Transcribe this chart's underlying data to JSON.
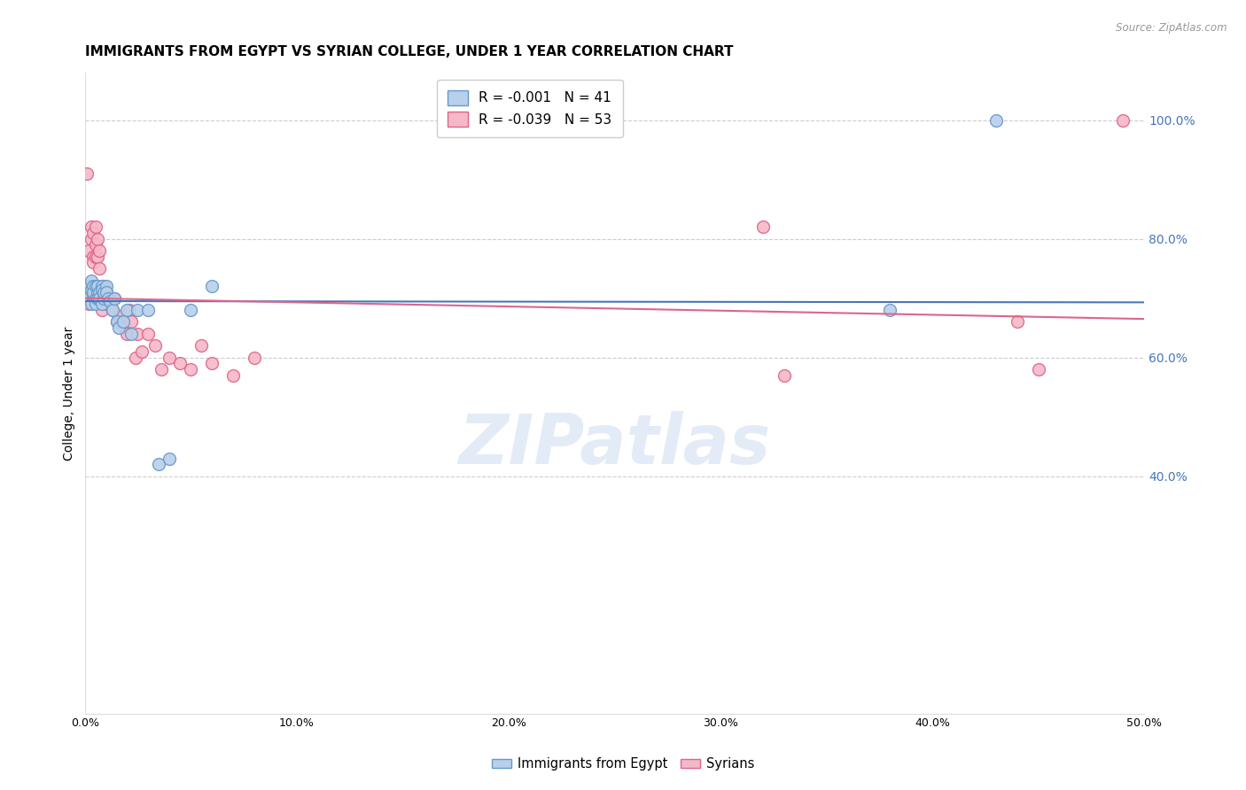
{
  "title": "IMMIGRANTS FROM EGYPT VS SYRIAN COLLEGE, UNDER 1 YEAR CORRELATION CHART",
  "source": "Source: ZipAtlas.com",
  "ylabel": "College, Under 1 year",
  "xlim": [
    0.0,
    0.5
  ],
  "ylim": [
    0.0,
    1.08
  ],
  "xtick_labels": [
    "0.0%",
    "10.0%",
    "20.0%",
    "30.0%",
    "40.0%",
    "50.0%"
  ],
  "xtick_vals": [
    0.0,
    0.1,
    0.2,
    0.3,
    0.4,
    0.5
  ],
  "ytick_labels": [
    "40.0%",
    "60.0%",
    "80.0%",
    "100.0%"
  ],
  "ytick_vals": [
    0.4,
    0.6,
    0.8,
    1.0
  ],
  "legend_entries": [
    {
      "label": "R = -0.001   N = 41",
      "color": "#b8d0ea"
    },
    {
      "label": "R = -0.039   N = 53",
      "color": "#f5b8c8"
    }
  ],
  "legend_labels_bottom": [
    "Immigrants from Egypt",
    "Syrians"
  ],
  "egypt_color": "#b8d0ea",
  "syria_color": "#f5b8c8",
  "egypt_edge": "#6699cc",
  "syria_edge": "#dd6688",
  "trend_egypt_color": "#4477bb",
  "trend_syria_color": "#dd6688",
  "watermark": "ZIPatlas",
  "egypt_x": [
    0.001,
    0.002,
    0.002,
    0.003,
    0.003,
    0.003,
    0.004,
    0.004,
    0.004,
    0.005,
    0.005,
    0.005,
    0.006,
    0.006,
    0.006,
    0.007,
    0.007,
    0.008,
    0.008,
    0.008,
    0.009,
    0.009,
    0.01,
    0.01,
    0.011,
    0.012,
    0.013,
    0.014,
    0.015,
    0.016,
    0.018,
    0.02,
    0.022,
    0.025,
    0.03,
    0.035,
    0.04,
    0.05,
    0.06,
    0.38,
    0.43
  ],
  "egypt_y": [
    0.71,
    0.72,
    0.7,
    0.73,
    0.715,
    0.69,
    0.705,
    0.72,
    0.71,
    0.72,
    0.7,
    0.69,
    0.71,
    0.72,
    0.7,
    0.71,
    0.7,
    0.72,
    0.715,
    0.69,
    0.7,
    0.71,
    0.72,
    0.71,
    0.7,
    0.695,
    0.68,
    0.7,
    0.66,
    0.65,
    0.66,
    0.68,
    0.64,
    0.68,
    0.68,
    0.42,
    0.43,
    0.68,
    0.72,
    0.68,
    1.0
  ],
  "syria_x": [
    0.001,
    0.002,
    0.002,
    0.003,
    0.003,
    0.004,
    0.004,
    0.004,
    0.005,
    0.005,
    0.005,
    0.006,
    0.006,
    0.007,
    0.007,
    0.007,
    0.008,
    0.008,
    0.009,
    0.009,
    0.009,
    0.01,
    0.01,
    0.011,
    0.012,
    0.013,
    0.014,
    0.015,
    0.016,
    0.017,
    0.018,
    0.019,
    0.02,
    0.021,
    0.022,
    0.024,
    0.025,
    0.027,
    0.03,
    0.033,
    0.036,
    0.04,
    0.045,
    0.05,
    0.055,
    0.06,
    0.07,
    0.08,
    0.32,
    0.33,
    0.44,
    0.45,
    0.49
  ],
  "syria_y": [
    0.91,
    0.78,
    0.69,
    0.8,
    0.82,
    0.77,
    0.76,
    0.81,
    0.82,
    0.77,
    0.79,
    0.8,
    0.77,
    0.78,
    0.71,
    0.75,
    0.72,
    0.68,
    0.71,
    0.7,
    0.72,
    0.71,
    0.69,
    0.7,
    0.7,
    0.68,
    0.7,
    0.66,
    0.67,
    0.67,
    0.66,
    0.65,
    0.64,
    0.68,
    0.66,
    0.6,
    0.64,
    0.61,
    0.64,
    0.62,
    0.58,
    0.6,
    0.59,
    0.58,
    0.62,
    0.59,
    0.57,
    0.6,
    0.82,
    0.57,
    0.66,
    0.58,
    1.0
  ],
  "background_color": "#ffffff",
  "grid_color": "#cccccc",
  "title_fontsize": 11,
  "axis_label_fontsize": 10,
  "tick_fontsize": 9,
  "marker_size": 100
}
